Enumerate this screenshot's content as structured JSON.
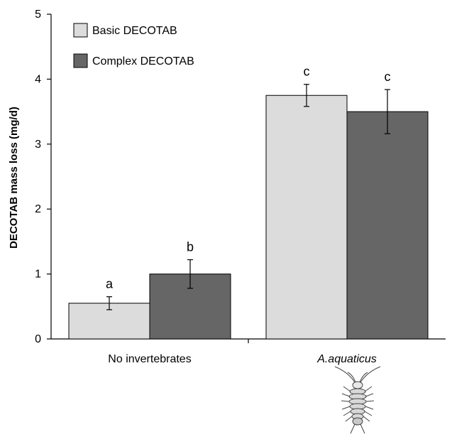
{
  "chart_data": {
    "type": "bar",
    "ylabel": "DECOTAB mass loss (mg/d)",
    "ylim": [
      0,
      5
    ],
    "yticks": [
      "0",
      "1",
      "2",
      "3",
      "4",
      "5"
    ],
    "categories": [
      "No invertebrates",
      "A.aquaticus"
    ],
    "category_italic": [
      false,
      true
    ],
    "legend_position": "top-left",
    "grid": false,
    "series": [
      {
        "name": "Basic DECOTAB",
        "color": "#dcdcdc",
        "values": [
          0.55,
          3.75
        ],
        "errors": [
          0.1,
          0.17
        ],
        "labels": [
          "a",
          "c"
        ]
      },
      {
        "name": "Complex DECOTAB",
        "color": "#666666",
        "values": [
          1.0,
          3.5
        ],
        "errors": [
          0.22,
          0.34
        ],
        "labels": [
          "b",
          "c"
        ]
      }
    ],
    "icons": [
      "isopod-icon"
    ]
  }
}
